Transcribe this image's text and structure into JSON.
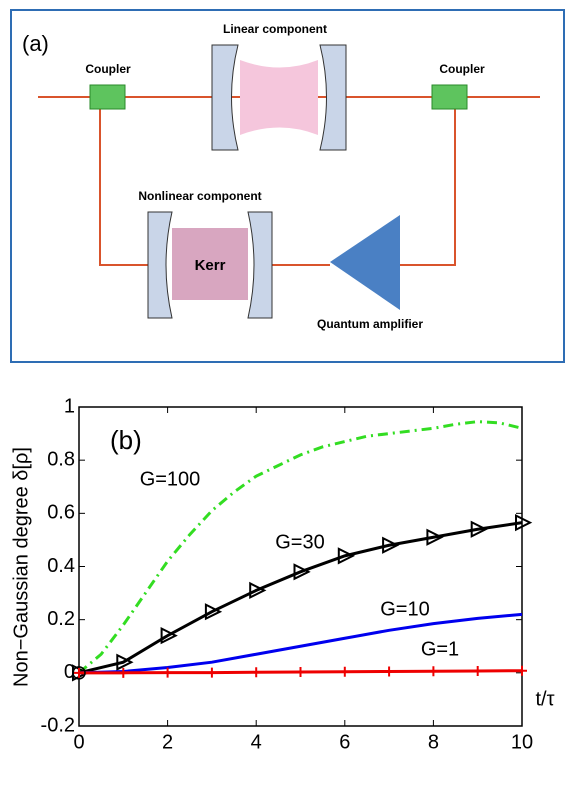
{
  "diagram": {
    "panel_label": "(a)",
    "linear": "Linear component",
    "coupler_left": "Coupler",
    "coupler_right": "Coupler",
    "nonlinear": "Nonlinear component",
    "kerr": "Kerr",
    "amplifier": "Quantum amplifier"
  },
  "chart_data": {
    "type": "line",
    "panel_label": "(b)",
    "ylabel": "Non−Gaussian degree δ[ρ]",
    "xlabel": "t/τ",
    "xlim": [
      0,
      10
    ],
    "xticks": [
      0,
      2,
      4,
      6,
      8,
      10
    ],
    "ylim": [
      -0.2,
      1
    ],
    "yticks": [
      -0.2,
      0,
      0.2,
      0.4,
      0.6,
      0.8,
      1
    ],
    "series": [
      {
        "name": "G=100",
        "color": "#33dd22",
        "dash": "dashdot",
        "x": [
          0,
          0.5,
          1,
          1.5,
          2,
          2.5,
          3,
          3.5,
          4,
          4.5,
          5,
          5.5,
          6,
          6.5,
          7,
          7.5,
          8,
          8.5,
          9,
          9.5,
          10
        ],
        "values": [
          0,
          0.07,
          0.18,
          0.3,
          0.42,
          0.52,
          0.61,
          0.68,
          0.74,
          0.78,
          0.82,
          0.85,
          0.87,
          0.89,
          0.9,
          0.91,
          0.92,
          0.935,
          0.945,
          0.94,
          0.92
        ]
      },
      {
        "name": "G=30",
        "color": "#000000",
        "marker": "triangle",
        "x": [
          0,
          1,
          2,
          3,
          4,
          5,
          6,
          7,
          8,
          9,
          10
        ],
        "values": [
          0,
          0.04,
          0.14,
          0.23,
          0.31,
          0.38,
          0.44,
          0.48,
          0.51,
          0.54,
          0.565
        ]
      },
      {
        "name": "G=10",
        "color": "#0000ee",
        "x": [
          0,
          1,
          2,
          3,
          4,
          5,
          6,
          7,
          8,
          9,
          10
        ],
        "values": [
          0,
          0.005,
          0.02,
          0.04,
          0.07,
          0.1,
          0.13,
          0.16,
          0.185,
          0.205,
          0.22
        ]
      },
      {
        "name": "G=1",
        "color": "#ee0000",
        "marker": "plus",
        "x": [
          0,
          1,
          2,
          3,
          4,
          5,
          6,
          7,
          8,
          9,
          10
        ],
        "values": [
          0,
          0,
          0.001,
          0.001,
          0.002,
          0.003,
          0.004,
          0.005,
          0.006,
          0.007,
          0.008
        ]
      }
    ]
  }
}
